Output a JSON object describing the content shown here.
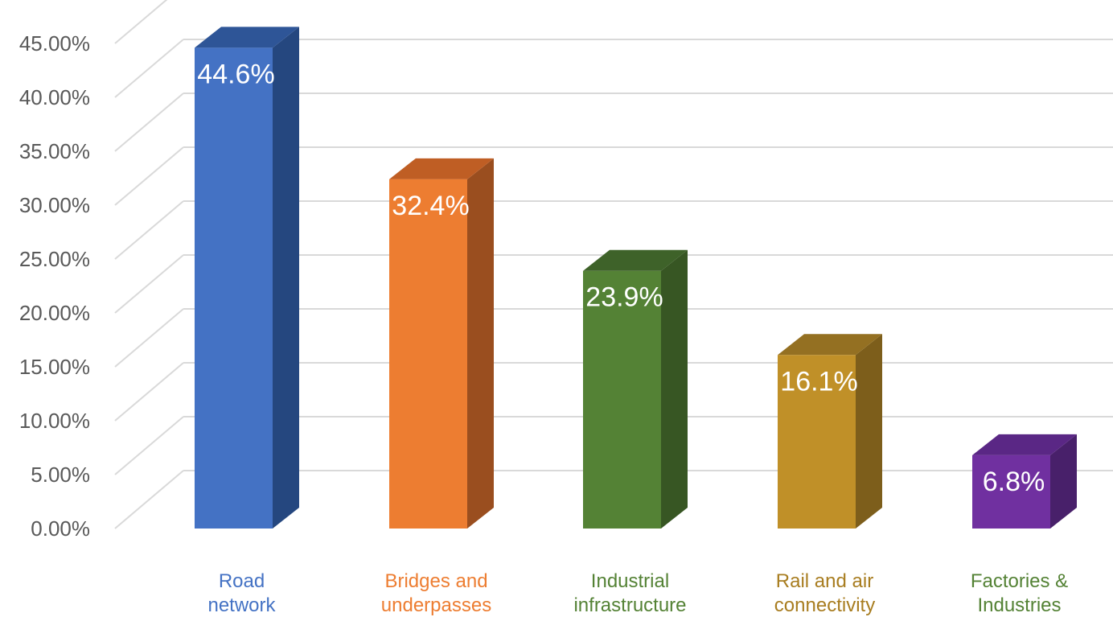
{
  "chart_data": {
    "type": "bar",
    "categories": [
      "Road network",
      "Bridges and underpasses",
      "Industrial infrastructure",
      "Rail and air connectivity",
      "Factories & Industries"
    ],
    "category_labels": [
      [
        "Road",
        "network"
      ],
      [
        "Bridges and",
        "underpasses"
      ],
      [
        "Industrial",
        "infrastructure"
      ],
      [
        "Rail and air",
        "connectivity"
      ],
      [
        "Factories &",
        "Industries"
      ]
    ],
    "values": [
      44.6,
      32.4,
      23.9,
      16.1,
      6.8
    ],
    "data_labels": [
      "44.6%",
      "32.4%",
      "23.9%",
      "16.1%",
      "6.8%"
    ],
    "ytick_labels": [
      "0.00%",
      "5.00%",
      "10.00%",
      "15.00%",
      "20.00%",
      "25.00%",
      "30.00%",
      "35.00%",
      "40.00%",
      "45.00%"
    ],
    "ylim": [
      0,
      45
    ],
    "grid": true,
    "style": "3d-column",
    "title": "",
    "xlabel": "",
    "ylabel": "",
    "colors": {
      "front": [
        "#4472c4",
        "#ed7d31",
        "#548235",
        "#c09028",
        "#7030a0"
      ],
      "side": [
        "#25477f",
        "#9a4e1f",
        "#375623",
        "#7d5e1b",
        "#48206a"
      ],
      "top": [
        "#2e5597",
        "#bf5e24",
        "#3e6229",
        "#947022",
        "#5a2785"
      ],
      "label_text": [
        "#4472c4",
        "#ed7d31",
        "#548235",
        "#a87d20",
        "#548235"
      ],
      "grid": "#d9d9d9",
      "axis_text": "#595959",
      "data_label_text": "#ffffff"
    }
  }
}
